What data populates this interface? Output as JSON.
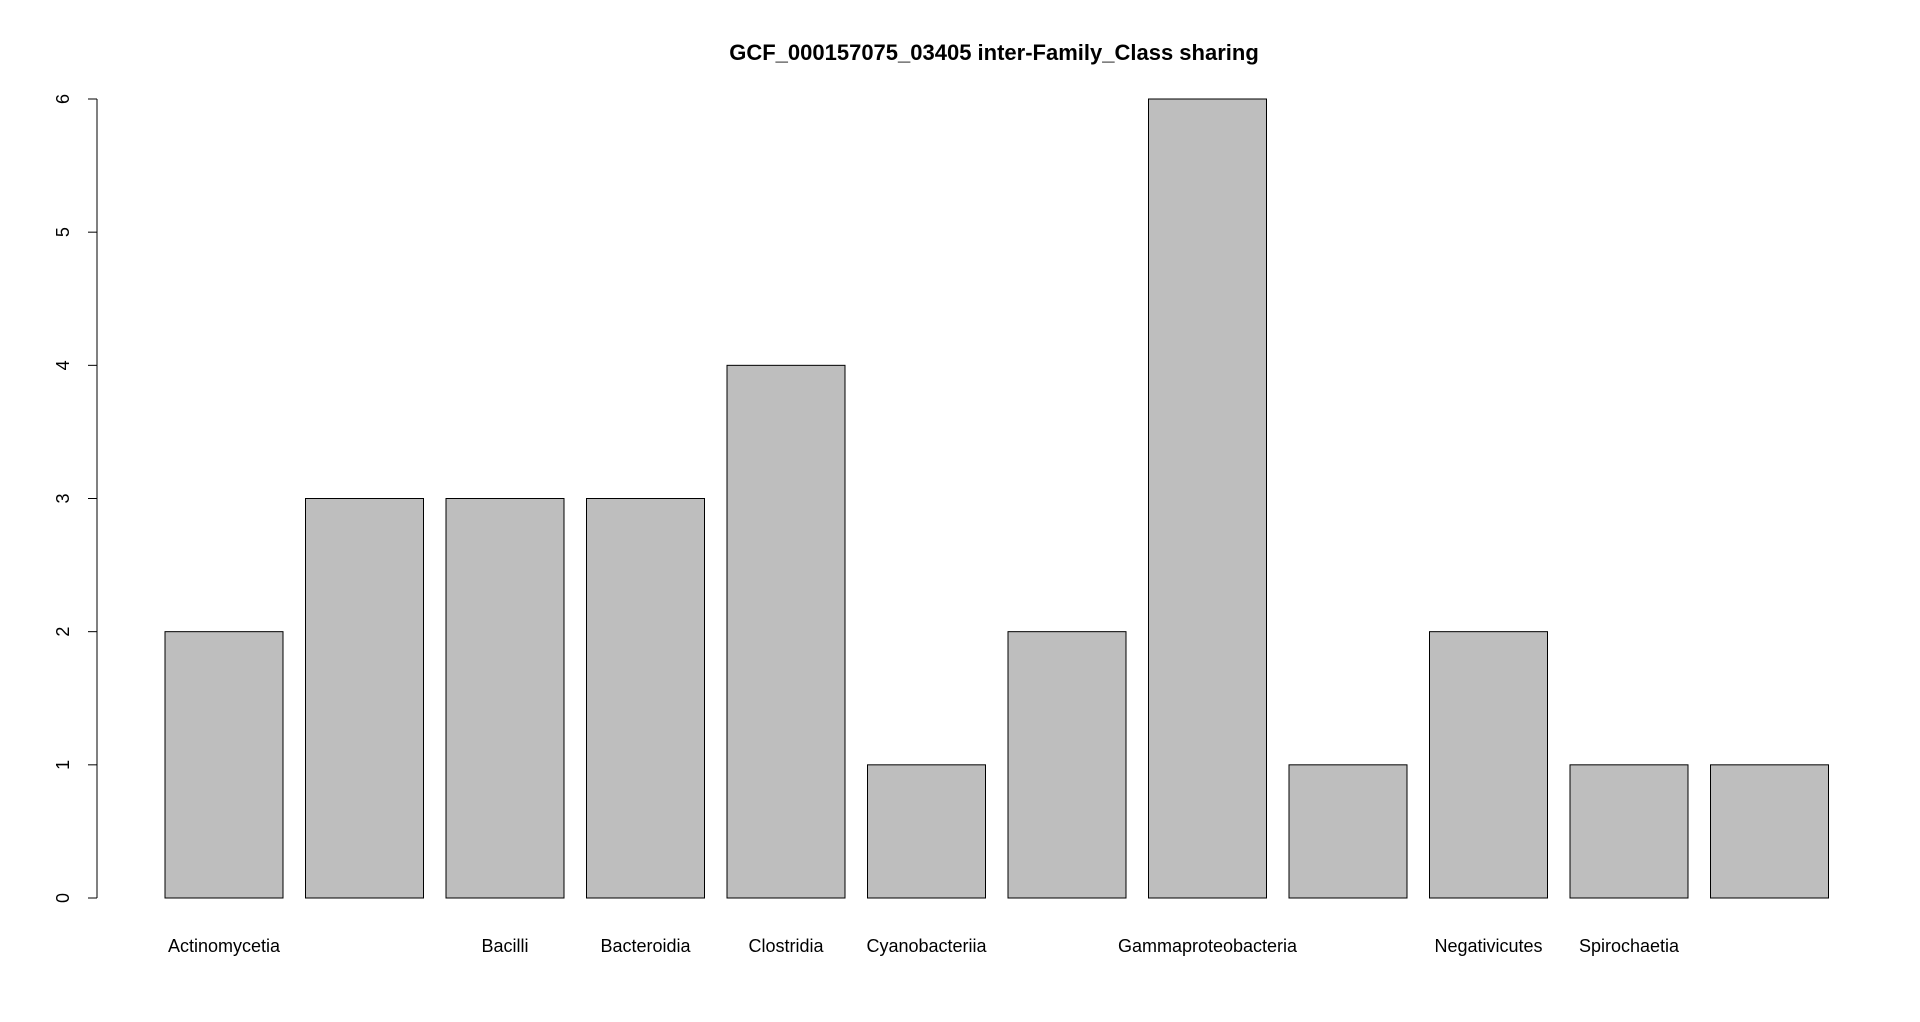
{
  "chart_data": {
    "type": "bar",
    "title": "GCF_000157075_03405 inter-Family_Class sharing",
    "xlabel": "",
    "ylabel": "",
    "ylim": [
      0,
      6
    ],
    "yticks": [
      0,
      1,
      2,
      3,
      4,
      5,
      6
    ],
    "grid": false,
    "legend": "none",
    "bar_fill": "#bebebe",
    "bar_stroke": "#000000",
    "categories": [
      "Actinomycetia",
      "",
      "Bacilli",
      "Bacteroidia",
      "Clostridia",
      "Cyanobacteriia",
      "",
      "Gammaproteobacteria",
      "",
      "Negativicutes",
      "Spirochaetia",
      ""
    ],
    "values": [
      2,
      3,
      3,
      3,
      4,
      1,
      2,
      6,
      1,
      2,
      1,
      1
    ]
  }
}
